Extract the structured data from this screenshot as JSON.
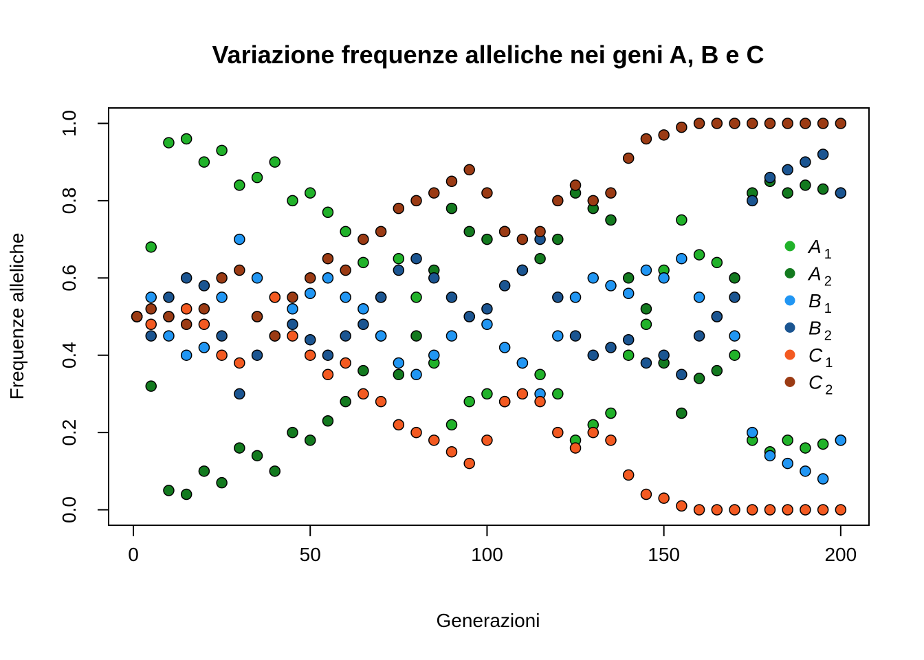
{
  "chart_data": {
    "type": "scatter",
    "title": "Variazione frequenze alleliche nei geni A, B e C",
    "xlabel": "Generazioni",
    "ylabel": "Frequenze alleliche",
    "xlim": [
      -7,
      208
    ],
    "ylim": [
      -0.04,
      1.04
    ],
    "x_ticks": [
      "0",
      "50",
      "100",
      "150",
      "200"
    ],
    "x_tick_values": [
      0,
      50,
      100,
      150,
      200
    ],
    "y_ticks": [
      "0.0",
      "0.2",
      "0.4",
      "0.6",
      "0.8",
      "1.0"
    ],
    "y_tick_values": [
      0,
      0.2,
      0.4,
      0.6,
      0.8,
      1.0
    ],
    "grid": false,
    "legend_position": "right",
    "x": [
      1,
      5,
      10,
      15,
      20,
      25,
      30,
      35,
      40,
      45,
      50,
      55,
      60,
      65,
      70,
      75,
      80,
      85,
      90,
      95,
      100,
      105,
      110,
      115,
      120,
      125,
      130,
      135,
      140,
      145,
      150,
      155,
      160,
      165,
      170,
      175,
      180,
      185,
      190,
      195,
      200
    ],
    "series": [
      {
        "name": "A",
        "subscript": "1",
        "color": "#21b22a",
        "values": [
          0.5,
          0.68,
          0.95,
          0.96,
          0.9,
          0.93,
          0.84,
          0.86,
          0.9,
          0.8,
          0.82,
          0.77,
          0.72,
          0.64,
          0.55,
          0.65,
          0.55,
          0.38,
          0.22,
          0.28,
          0.3,
          0.28,
          0.38,
          0.35,
          0.3,
          0.18,
          0.22,
          0.25,
          0.4,
          0.48,
          0.62,
          0.75,
          0.66,
          0.64,
          0.4,
          0.18,
          0.15,
          0.18,
          0.16,
          0.17,
          0.18
        ]
      },
      {
        "name": "A",
        "subscript": "2",
        "color": "#137a1f",
        "values": [
          0.5,
          0.32,
          0.05,
          0.04,
          0.1,
          0.07,
          0.16,
          0.14,
          0.1,
          0.2,
          0.18,
          0.23,
          0.28,
          0.36,
          0.45,
          0.35,
          0.45,
          0.62,
          0.78,
          0.72,
          0.7,
          0.72,
          0.62,
          0.65,
          0.7,
          0.82,
          0.78,
          0.75,
          0.6,
          0.52,
          0.38,
          0.25,
          0.34,
          0.36,
          0.6,
          0.82,
          0.85,
          0.82,
          0.84,
          0.83,
          0.82
        ]
      },
      {
        "name": "B",
        "subscript": "1",
        "color": "#2196f3",
        "values": [
          0.5,
          0.55,
          0.45,
          0.4,
          0.42,
          0.55,
          0.7,
          0.6,
          0.55,
          0.52,
          0.56,
          0.6,
          0.55,
          0.52,
          0.45,
          0.38,
          0.35,
          0.4,
          0.45,
          0.5,
          0.48,
          0.42,
          0.38,
          0.3,
          0.45,
          0.55,
          0.6,
          0.58,
          0.56,
          0.62,
          0.6,
          0.65,
          0.55,
          0.5,
          0.45,
          0.2,
          0.14,
          0.12,
          0.1,
          0.08,
          0.18
        ]
      },
      {
        "name": "B",
        "subscript": "2",
        "color": "#1b5591",
        "values": [
          0.5,
          0.45,
          0.55,
          0.6,
          0.58,
          0.45,
          0.3,
          0.4,
          0.45,
          0.48,
          0.44,
          0.4,
          0.45,
          0.48,
          0.55,
          0.62,
          0.65,
          0.6,
          0.55,
          0.5,
          0.52,
          0.58,
          0.62,
          0.7,
          0.55,
          0.45,
          0.4,
          0.42,
          0.44,
          0.38,
          0.4,
          0.35,
          0.45,
          0.5,
          0.55,
          0.8,
          0.86,
          0.88,
          0.9,
          0.92,
          0.82
        ]
      },
      {
        "name": "C",
        "subscript": "1",
        "color": "#f35a21",
        "values": [
          0.5,
          0.48,
          0.5,
          0.52,
          0.48,
          0.4,
          0.38,
          0.5,
          0.55,
          0.45,
          0.4,
          0.35,
          0.38,
          0.3,
          0.28,
          0.22,
          0.2,
          0.18,
          0.15,
          0.12,
          0.18,
          0.28,
          0.3,
          0.28,
          0.2,
          0.16,
          0.2,
          0.18,
          0.09,
          0.04,
          0.03,
          0.01,
          0.0,
          0.0,
          0.0,
          0.0,
          0.0,
          0.0,
          0.0,
          0.0,
          0.0
        ]
      },
      {
        "name": "C",
        "subscript": "2",
        "color": "#9b3b14",
        "values": [
          0.5,
          0.52,
          0.5,
          0.48,
          0.52,
          0.6,
          0.62,
          0.5,
          0.45,
          0.55,
          0.6,
          0.65,
          0.62,
          0.7,
          0.72,
          0.78,
          0.8,
          0.82,
          0.85,
          0.88,
          0.82,
          0.72,
          0.7,
          0.72,
          0.8,
          0.84,
          0.8,
          0.82,
          0.91,
          0.96,
          0.97,
          0.99,
          1.0,
          1.0,
          1.0,
          1.0,
          1.0,
          1.0,
          1.0,
          1.0,
          1.0
        ]
      }
    ]
  }
}
